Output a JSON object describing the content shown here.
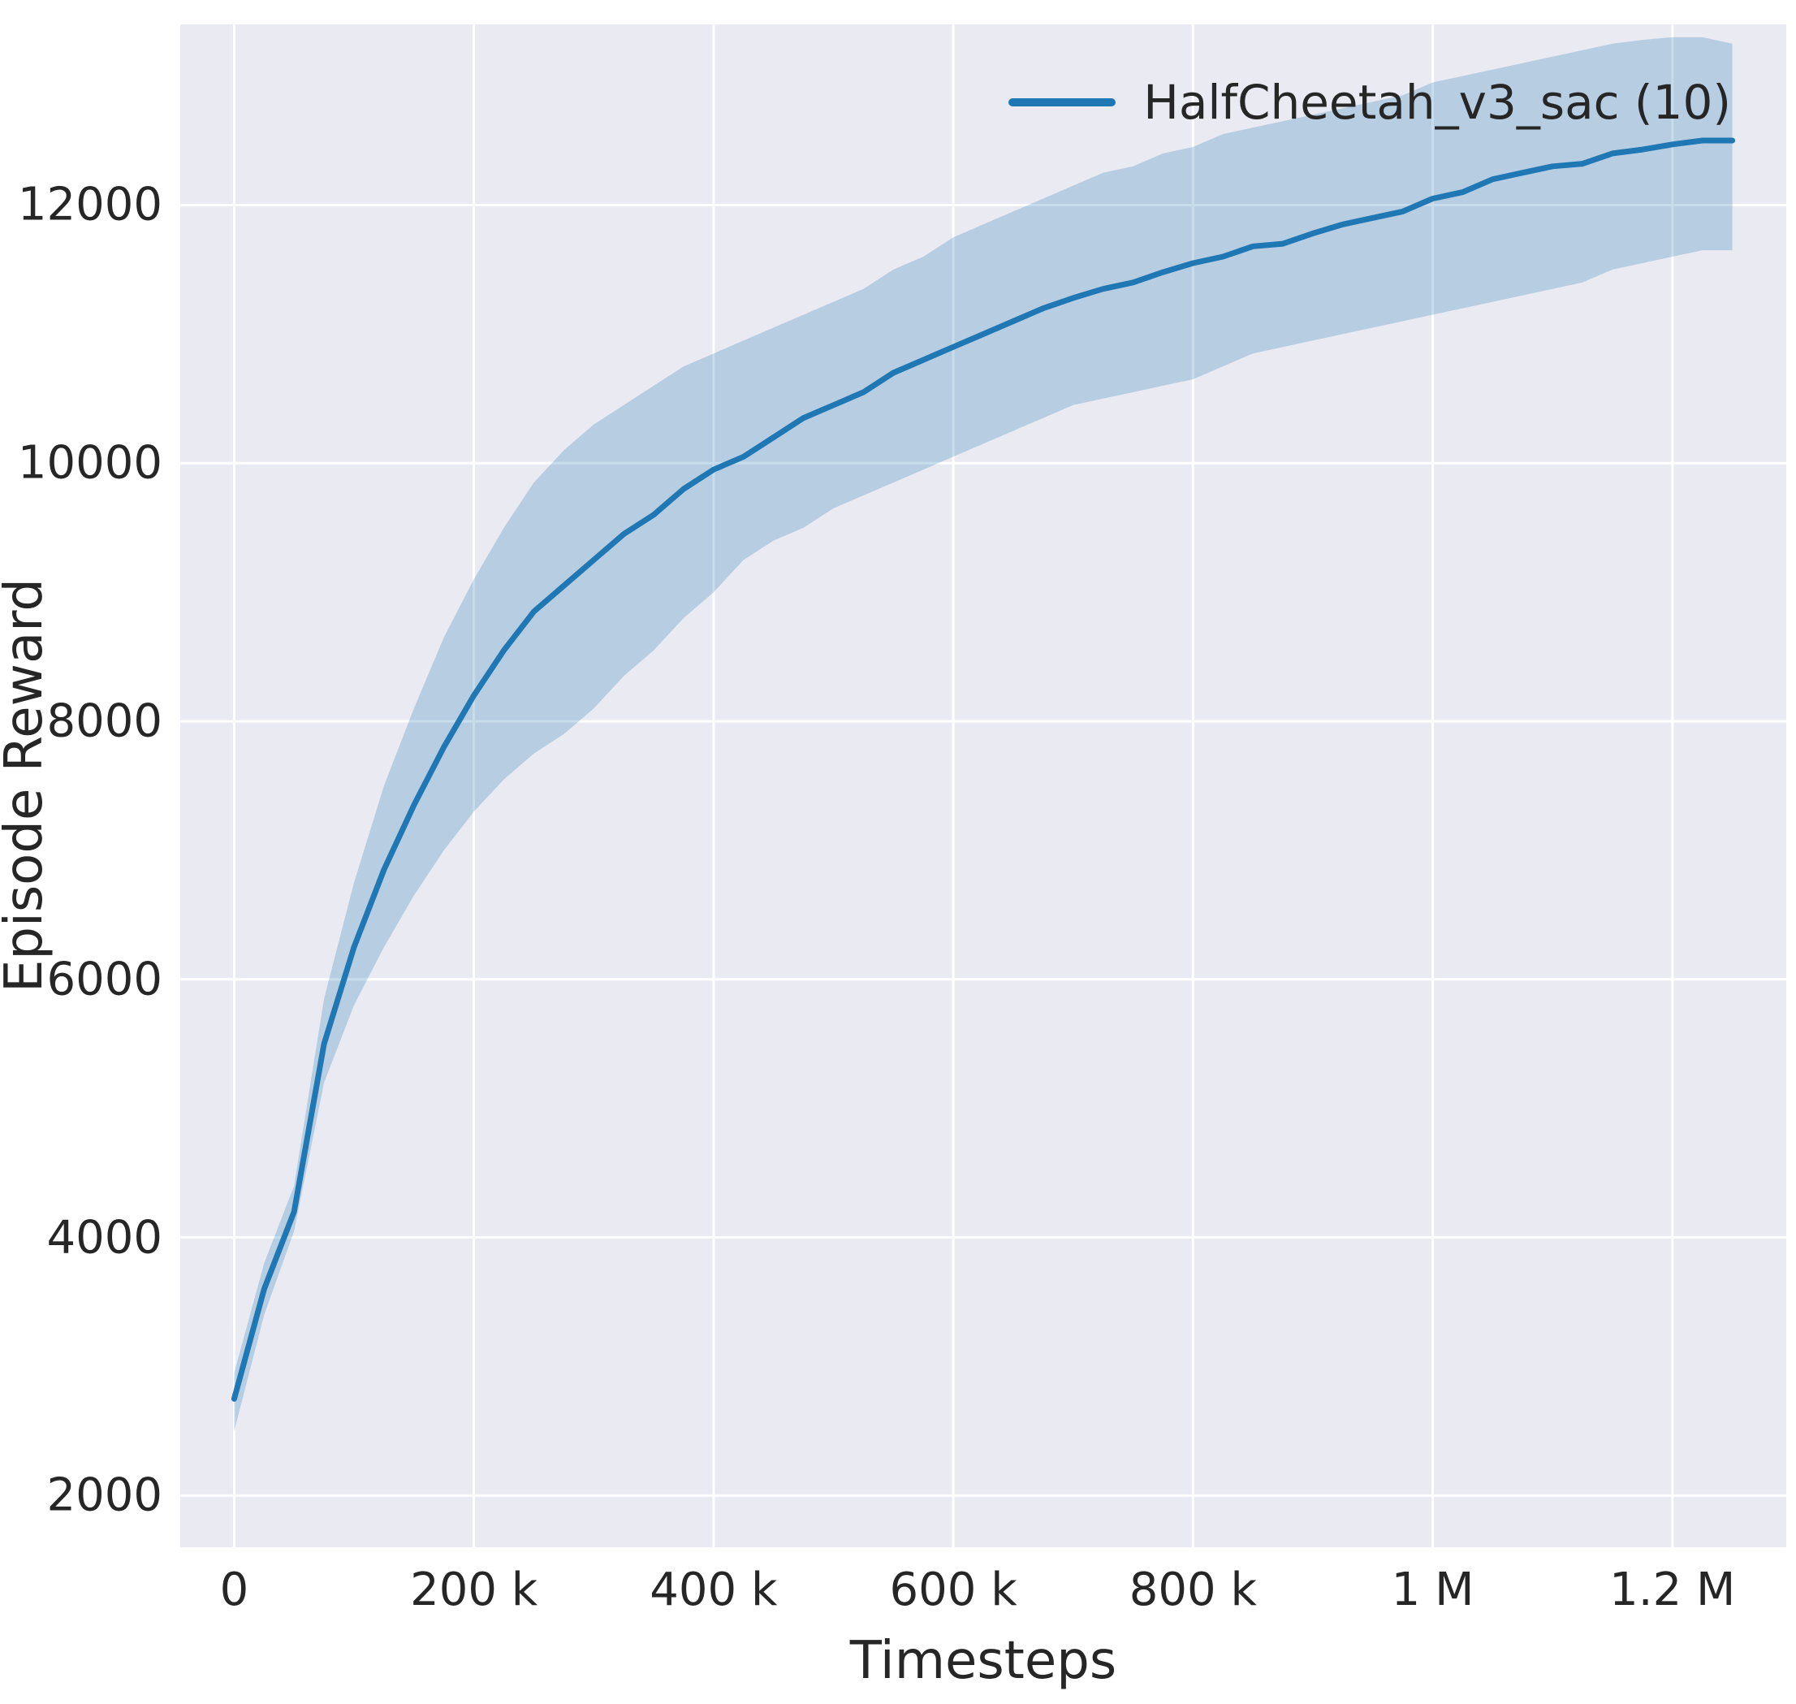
{
  "chart_data": {
    "type": "line",
    "title": "",
    "xlabel": "Timesteps",
    "ylabel": "Episode Reward",
    "grid": true,
    "grid_color": "#ffffff",
    "plot_bg": "#eaeaf2",
    "text_color": "#262626",
    "legend_position": "upper right",
    "xlim": [
      -45000,
      1295000
    ],
    "ylim": [
      1600,
      13400
    ],
    "xticks": [
      {
        "value": 0,
        "label": "0"
      },
      {
        "value": 200000,
        "label": "200 k"
      },
      {
        "value": 400000,
        "label": "400 k"
      },
      {
        "value": 600000,
        "label": "600 k"
      },
      {
        "value": 800000,
        "label": "800 k"
      },
      {
        "value": 1000000,
        "label": "1 M"
      },
      {
        "value": 1200000,
        "label": "1.2 M"
      }
    ],
    "yticks": [
      {
        "value": 2000,
        "label": "2000"
      },
      {
        "value": 4000,
        "label": "4000"
      },
      {
        "value": 6000,
        "label": "6000"
      },
      {
        "value": 8000,
        "label": "8000"
      },
      {
        "value": 10000,
        "label": "10000"
      },
      {
        "value": 12000,
        "label": "12000"
      }
    ],
    "legend": [
      {
        "label": "HalfCheetah_v3_sac (10)",
        "color": "#1f77b4"
      }
    ],
    "series": [
      {
        "name": "HalfCheetah_v3_sac (10)",
        "color": "#1f77b4",
        "line_width": 7,
        "band_opacity": 0.25,
        "x": [
          0,
          25000,
          50000,
          75000,
          100000,
          125000,
          150000,
          175000,
          200000,
          225000,
          250000,
          275000,
          300000,
          325000,
          350000,
          375000,
          400000,
          425000,
          450000,
          475000,
          500000,
          525000,
          550000,
          575000,
          600000,
          625000,
          650000,
          675000,
          700000,
          725000,
          750000,
          775000,
          800000,
          825000,
          850000,
          875000,
          900000,
          925000,
          950000,
          975000,
          1000000,
          1025000,
          1050000,
          1075000,
          1100000,
          1125000,
          1150000,
          1175000,
          1200000,
          1225000,
          1250000
        ],
        "mean": [
          2750,
          3600,
          4200,
          5500,
          6250,
          6850,
          7350,
          7800,
          8200,
          8550,
          8850,
          9050,
          9250,
          9450,
          9600,
          9800,
          9950,
          10050,
          10200,
          10350,
          10450,
          10550,
          10700,
          10800,
          10900,
          11000,
          11100,
          11200,
          11280,
          11350,
          11400,
          11480,
          11550,
          11600,
          11680,
          11700,
          11780,
          11850,
          11900,
          11950,
          12050,
          12100,
          12200,
          12250,
          12300,
          12320,
          12400,
          12430,
          12470,
          12500,
          12500
        ],
        "lower": [
          2500,
          3400,
          4050,
          5200,
          5800,
          6250,
          6650,
          7000,
          7300,
          7550,
          7750,
          7900,
          8100,
          8350,
          8550,
          8800,
          9000,
          9250,
          9400,
          9500,
          9650,
          9750,
          9850,
          9950,
          10050,
          10150,
          10250,
          10350,
          10450,
          10500,
          10550,
          10600,
          10650,
          10750,
          10850,
          10900,
          10950,
          11000,
          11050,
          11100,
          11150,
          11200,
          11250,
          11300,
          11350,
          11400,
          11500,
          11550,
          11600,
          11650,
          11650
        ],
        "upper": [
          2950,
          3800,
          4400,
          5850,
          6750,
          7500,
          8100,
          8650,
          9100,
          9500,
          9850,
          10100,
          10300,
          10450,
          10600,
          10750,
          10850,
          10950,
          11050,
          11150,
          11250,
          11350,
          11500,
          11600,
          11750,
          11850,
          11950,
          12050,
          12150,
          12250,
          12300,
          12400,
          12450,
          12550,
          12600,
          12650,
          12700,
          12750,
          12800,
          12850,
          12950,
          13000,
          13050,
          13100,
          13150,
          13200,
          13250,
          13280,
          13300,
          13300,
          13250
        ]
      }
    ]
  }
}
